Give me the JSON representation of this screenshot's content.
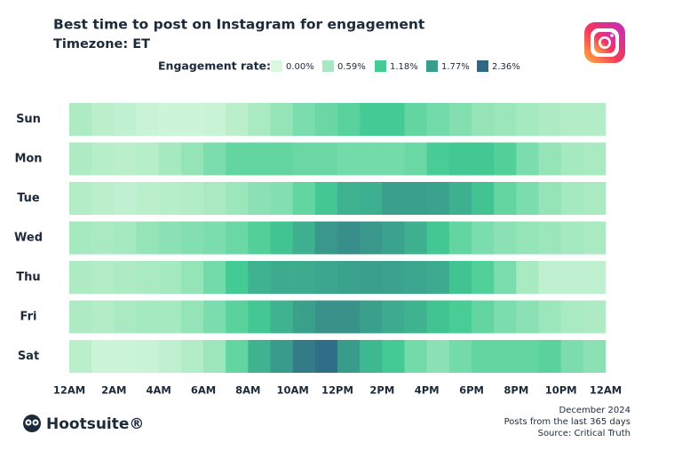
{
  "chart_data": {
    "type": "heatmap",
    "title": "Best time to post on Instagram for engagement",
    "subtitle": "Timezone: ET",
    "legend_title": "Engagement rate:",
    "scale": [
      {
        "value": 0,
        "label": "0.00%",
        "color": "#d9f8de"
      },
      {
        "value": 0.59,
        "label": "0.59%",
        "color": "#a6e9c0"
      },
      {
        "value": 1.18,
        "label": "1.18%",
        "color": "#44cc94"
      },
      {
        "value": 1.77,
        "label": "1.77%",
        "color": "#3a9e8c"
      },
      {
        "value": 2.36,
        "label": "2.36%",
        "color": "#2f6885"
      }
    ],
    "categories": [
      "Sun",
      "Mon",
      "Tue",
      "Wed",
      "Thu",
      "Fri",
      "Sat"
    ],
    "xlim": [
      0,
      24
    ],
    "xticks": [
      {
        "value": 0,
        "label": "12AM"
      },
      {
        "value": 2,
        "label": "2AM"
      },
      {
        "value": 4,
        "label": "4AM"
      },
      {
        "value": 6,
        "label": "6AM"
      },
      {
        "value": 8,
        "label": "8AM"
      },
      {
        "value": 10,
        "label": "10AM"
      },
      {
        "value": 12,
        "label": "12PM"
      },
      {
        "value": 14,
        "label": "2PM"
      },
      {
        "value": 16,
        "label": "4PM"
      },
      {
        "value": 18,
        "label": "6PM"
      },
      {
        "value": 20,
        "label": "8PM"
      },
      {
        "value": 22,
        "label": "10PM"
      },
      {
        "value": 24,
        "label": "12AM"
      }
    ],
    "values": [
      [
        0.5,
        0.35,
        0.3,
        0.2,
        0.15,
        0.15,
        0.2,
        0.35,
        0.55,
        0.7,
        0.85,
        0.95,
        1.05,
        1.2,
        1.2,
        1.0,
        0.9,
        0.8,
        0.7,
        0.65,
        0.6,
        0.5,
        0.45,
        0.45
      ],
      [
        0.5,
        0.4,
        0.35,
        0.4,
        0.6,
        0.7,
        0.85,
        1.0,
        1.0,
        1.0,
        0.95,
        0.95,
        0.9,
        0.9,
        0.9,
        0.95,
        1.15,
        1.25,
        1.25,
        1.1,
        0.85,
        0.7,
        0.6,
        0.55
      ],
      [
        0.45,
        0.35,
        0.3,
        0.35,
        0.4,
        0.45,
        0.55,
        0.65,
        0.75,
        0.8,
        1.0,
        1.25,
        1.5,
        1.55,
        1.75,
        1.75,
        1.7,
        1.55,
        1.3,
        1.0,
        0.85,
        0.7,
        0.6,
        0.55
      ],
      [
        0.6,
        0.55,
        0.6,
        0.7,
        0.75,
        0.8,
        0.85,
        0.95,
        1.1,
        1.3,
        1.55,
        1.85,
        1.95,
        1.85,
        1.7,
        1.55,
        1.25,
        1.0,
        0.85,
        0.75,
        0.7,
        0.65,
        0.6,
        0.55
      ],
      [
        0.5,
        0.45,
        0.5,
        0.55,
        0.6,
        0.7,
        0.9,
        1.2,
        1.5,
        1.6,
        1.6,
        1.65,
        1.7,
        1.75,
        1.7,
        1.65,
        1.6,
        1.3,
        1.1,
        0.85,
        0.55,
        0.3,
        0.3,
        0.3
      ],
      [
        0.5,
        0.45,
        0.55,
        0.6,
        0.6,
        0.7,
        0.85,
        1.05,
        1.25,
        1.5,
        1.75,
        1.9,
        1.9,
        1.75,
        1.6,
        1.5,
        1.3,
        1.15,
        1.0,
        0.85,
        0.75,
        0.65,
        0.55,
        0.5
      ],
      [
        0.35,
        0.15,
        0.15,
        0.2,
        0.3,
        0.45,
        0.65,
        1.0,
        1.5,
        1.8,
        2.15,
        2.3,
        1.8,
        1.45,
        1.2,
        0.9,
        0.75,
        0.9,
        1.0,
        1.0,
        1.0,
        1.05,
        0.85,
        0.75
      ]
    ],
    "brand": "Hootsuite®",
    "footer": [
      "December 2024",
      "Posts from the last 365 days",
      "Source: Critical Truth"
    ]
  }
}
